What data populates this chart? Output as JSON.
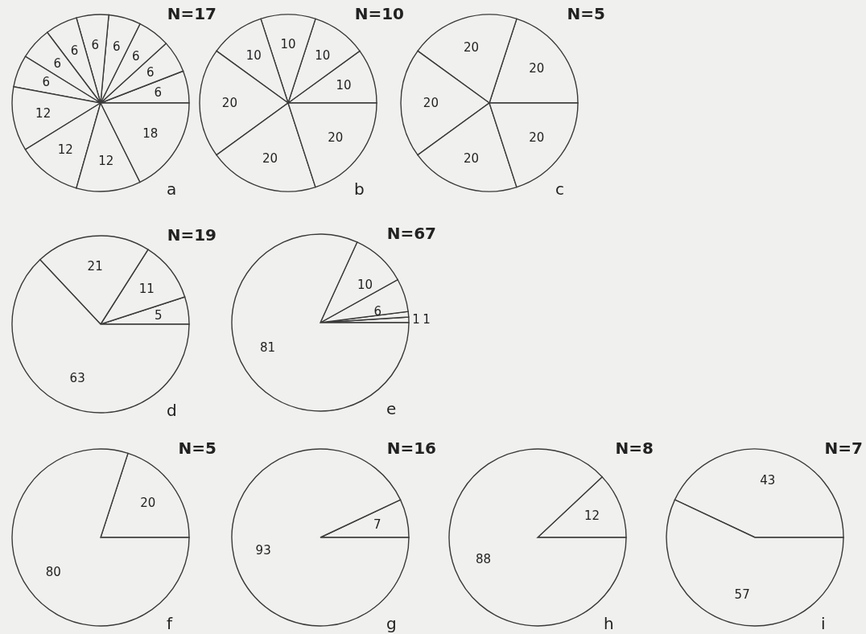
{
  "chart_data": [
    {
      "type": "pie",
      "title": "N=17",
      "annotations": [
        "a"
      ],
      "categories": [
        null,
        null,
        null,
        null,
        null,
        null,
        null,
        null,
        null,
        null,
        null,
        null
      ],
      "values": [
        6,
        6,
        6,
        6,
        6,
        6,
        6,
        6,
        12,
        12,
        12,
        18
      ],
      "colors": [
        "#f0f0ee",
        "#f0f0ee",
        "#f0f0ee",
        "#f0f0ee",
        "#f0f0ee",
        "#f0f0ee",
        "#f0f0ee",
        "#f0f0ee",
        "#f0f0ee",
        "#f0f0ee",
        "#f0f0ee",
        "#f0f0ee"
      ],
      "data_labels": true
    },
    {
      "type": "pie",
      "title": "N=10",
      "annotations": [
        "b"
      ],
      "categories": [
        null,
        null,
        null,
        null,
        null,
        null,
        null
      ],
      "values": [
        10,
        10,
        10,
        10,
        20,
        20,
        20
      ],
      "colors": [
        "#f0f0ee",
        "#f0f0ee",
        "#f0f0ee",
        "#f0f0ee",
        "#f0f0ee",
        "#f0f0ee",
        "#f0f0ee"
      ],
      "data_labels": true
    },
    {
      "type": "pie",
      "title": "N=5",
      "annotations": [
        "c"
      ],
      "categories": [
        null,
        null,
        null,
        null,
        null
      ],
      "values": [
        20,
        20,
        20,
        20,
        20
      ],
      "colors": [
        "#f0f0ee",
        "#f0f0ee",
        "#f0f0ee",
        "#f0f0ee",
        "#f0f0ee"
      ],
      "data_labels": true
    },
    {
      "type": "pie",
      "title": "N=19",
      "annotations": [
        "d"
      ],
      "categories": [
        null,
        null,
        null,
        null
      ],
      "values": [
        5,
        11,
        21,
        63
      ],
      "colors": [
        "#f0f0ee",
        "#f0f0ee",
        "#f0f0ee",
        "#f0f0ee"
      ],
      "data_labels": true
    },
    {
      "type": "pie",
      "title": "N=67",
      "annotations": [
        "e"
      ],
      "categories": [
        null,
        null,
        null,
        null,
        null
      ],
      "values": [
        1,
        1,
        6,
        10,
        81
      ],
      "colors": [
        "#f0f0ee",
        "#f0f0ee",
        "#f0f0ee",
        "#f0f0ee",
        "#f0f0ee"
      ],
      "data_labels": true
    },
    {
      "type": "pie",
      "title": "N=5",
      "annotations": [
        "f"
      ],
      "categories": [
        null,
        null
      ],
      "values": [
        20,
        80
      ],
      "colors": [
        "#f0f0ee",
        "#f0f0ee"
      ],
      "data_labels": true
    },
    {
      "type": "pie",
      "title": "N=16",
      "annotations": [
        "g"
      ],
      "categories": [
        null,
        null
      ],
      "values": [
        7,
        93
      ],
      "colors": [
        "#f0f0ee",
        "#f0f0ee"
      ],
      "data_labels": true
    },
    {
      "type": "pie",
      "title": "N=8",
      "annotations": [
        "h"
      ],
      "categories": [
        null,
        null
      ],
      "values": [
        12,
        88
      ],
      "colors": [
        "#f0f0ee",
        "#f0f0ee"
      ],
      "data_labels": true
    },
    {
      "type": "pie",
      "title": "N=7",
      "annotations": [
        "i"
      ],
      "categories": [
        null,
        null
      ],
      "values": [
        43,
        57
      ],
      "colors": [
        "#f0f0ee",
        "#f0f0ee"
      ],
      "data_labels": true
    }
  ]
}
